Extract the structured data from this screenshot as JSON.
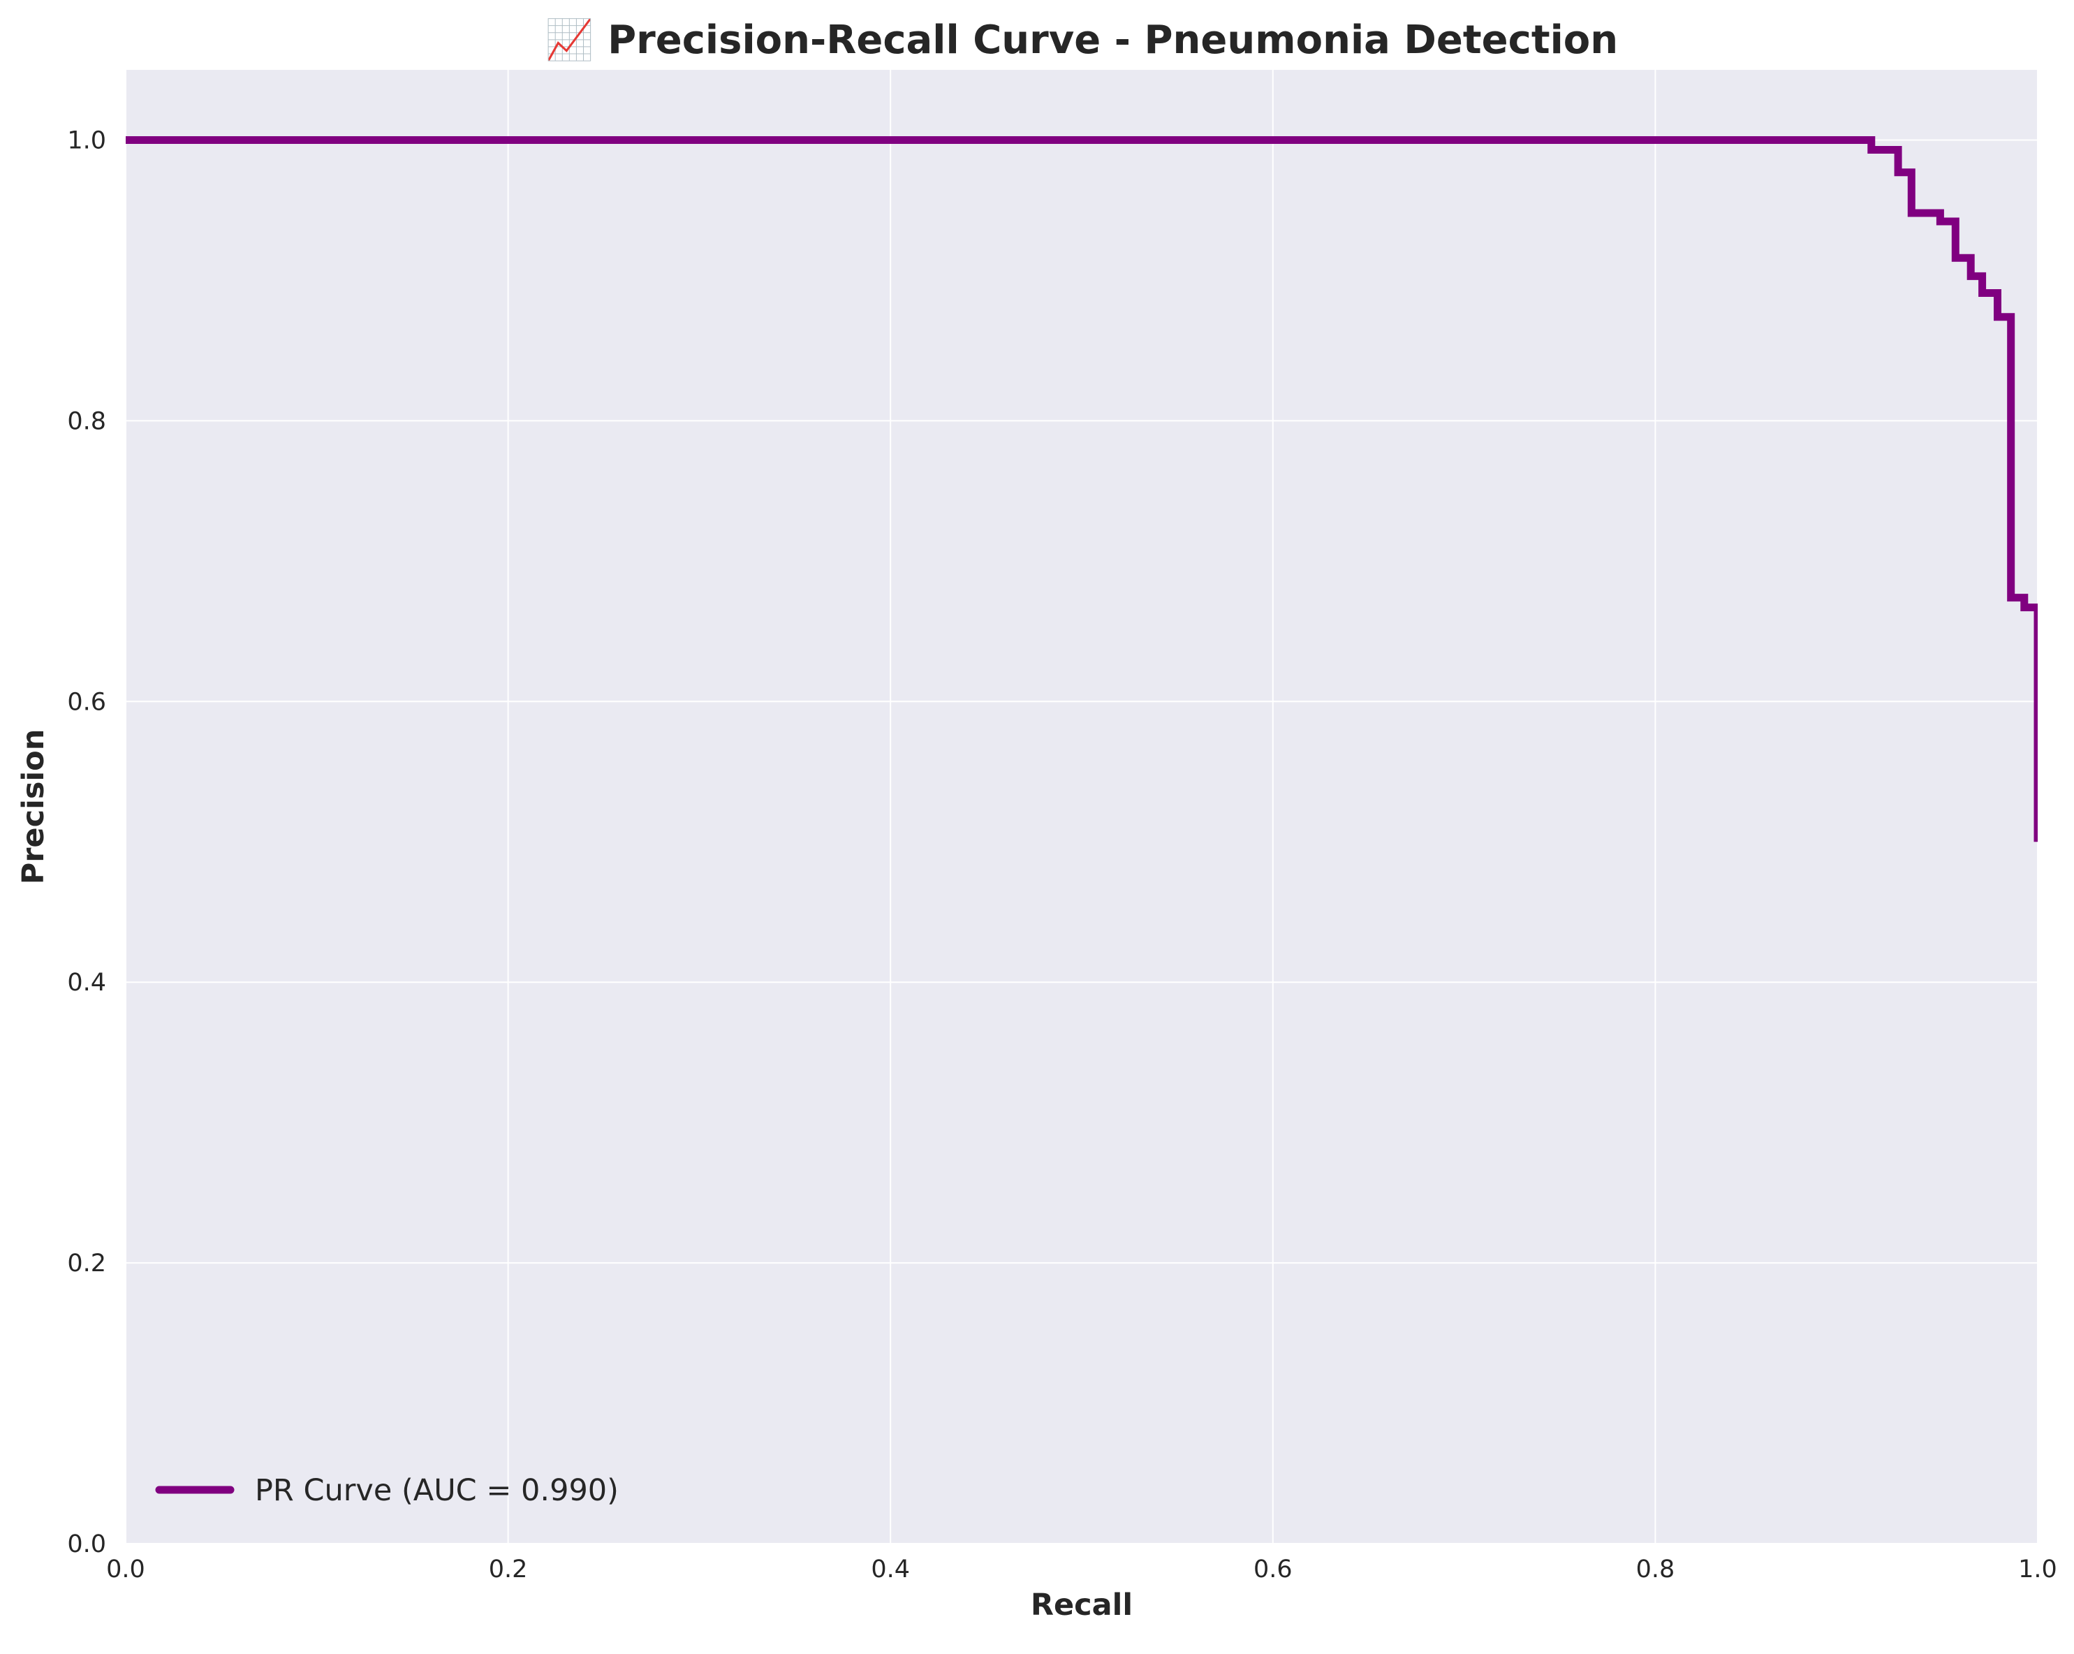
{
  "chart_data": {
    "type": "line",
    "title": "📈 Precision-Recall Curve - Pneumonia Detection",
    "xlabel": "Recall",
    "ylabel": "Precision",
    "xlim": [
      0,
      1
    ],
    "ylim": [
      0,
      1.05
    ],
    "x_ticks": [
      "0.0",
      "0.2",
      "0.4",
      "0.6",
      "0.8",
      "1.0"
    ],
    "y_ticks": [
      "0.0",
      "0.2",
      "0.4",
      "0.6",
      "0.8",
      "1.0"
    ],
    "grid": true,
    "legend_position": "lower left",
    "colors": {
      "series": "#800080",
      "plot_background": "#EAEAF2",
      "grid": "#ffffff"
    },
    "series": [
      {
        "name": "PR Curve (AUC = 0.990)",
        "recall": [
          0.0,
          0.913,
          0.913,
          0.927,
          0.927,
          0.934,
          0.934,
          0.949,
          0.949,
          0.957,
          0.957,
          0.965,
          0.965,
          0.971,
          0.971,
          0.979,
          0.979,
          0.986,
          0.986,
          0.993,
          0.993,
          1.0,
          1.0
        ],
        "precision": [
          1.0,
          1.0,
          0.993,
          0.993,
          0.977,
          0.977,
          0.948,
          0.948,
          0.942,
          0.942,
          0.916,
          0.916,
          0.903,
          0.903,
          0.891,
          0.891,
          0.874,
          0.874,
          0.674,
          0.674,
          0.667,
          0.667,
          0.5
        ]
      }
    ]
  }
}
